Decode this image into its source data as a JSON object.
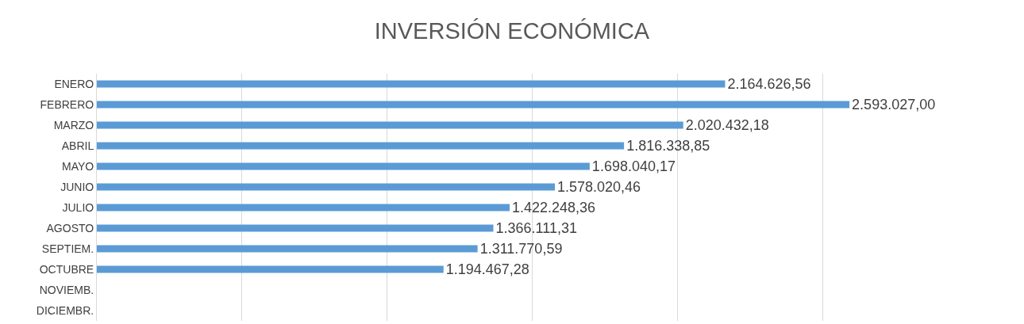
{
  "chart_data": {
    "type": "bar",
    "orientation": "horizontal",
    "title": "INVERSIÓN ECONÓMICA",
    "categories": [
      "ENERO",
      "FEBRERO",
      "MARZO",
      "ABRIL",
      "MAYO",
      "JUNIO",
      "JULIO",
      "AGOSTO",
      "SEPTIEM.",
      "OCTUBRE",
      "NOVIEMB.",
      "DICIEMBR."
    ],
    "values": [
      2164626.56,
      2593027.0,
      2020432.18,
      1816338.85,
      1698040.17,
      1578020.46,
      1422248.36,
      1366111.31,
      1311770.59,
      1194467.28,
      null,
      null
    ],
    "value_labels": [
      "2.164.626,56",
      "2.593.027,00",
      "2.020.432,18",
      "1.816.338,85",
      "1.698.040,17",
      "1.578.020,46",
      "1.422.248,36",
      "1.366.111,31",
      "1.311.770,59",
      "1.194.467,28",
      null,
      null
    ],
    "color": "#5b9bd5",
    "grid": "x",
    "tick_labels": "y"
  }
}
